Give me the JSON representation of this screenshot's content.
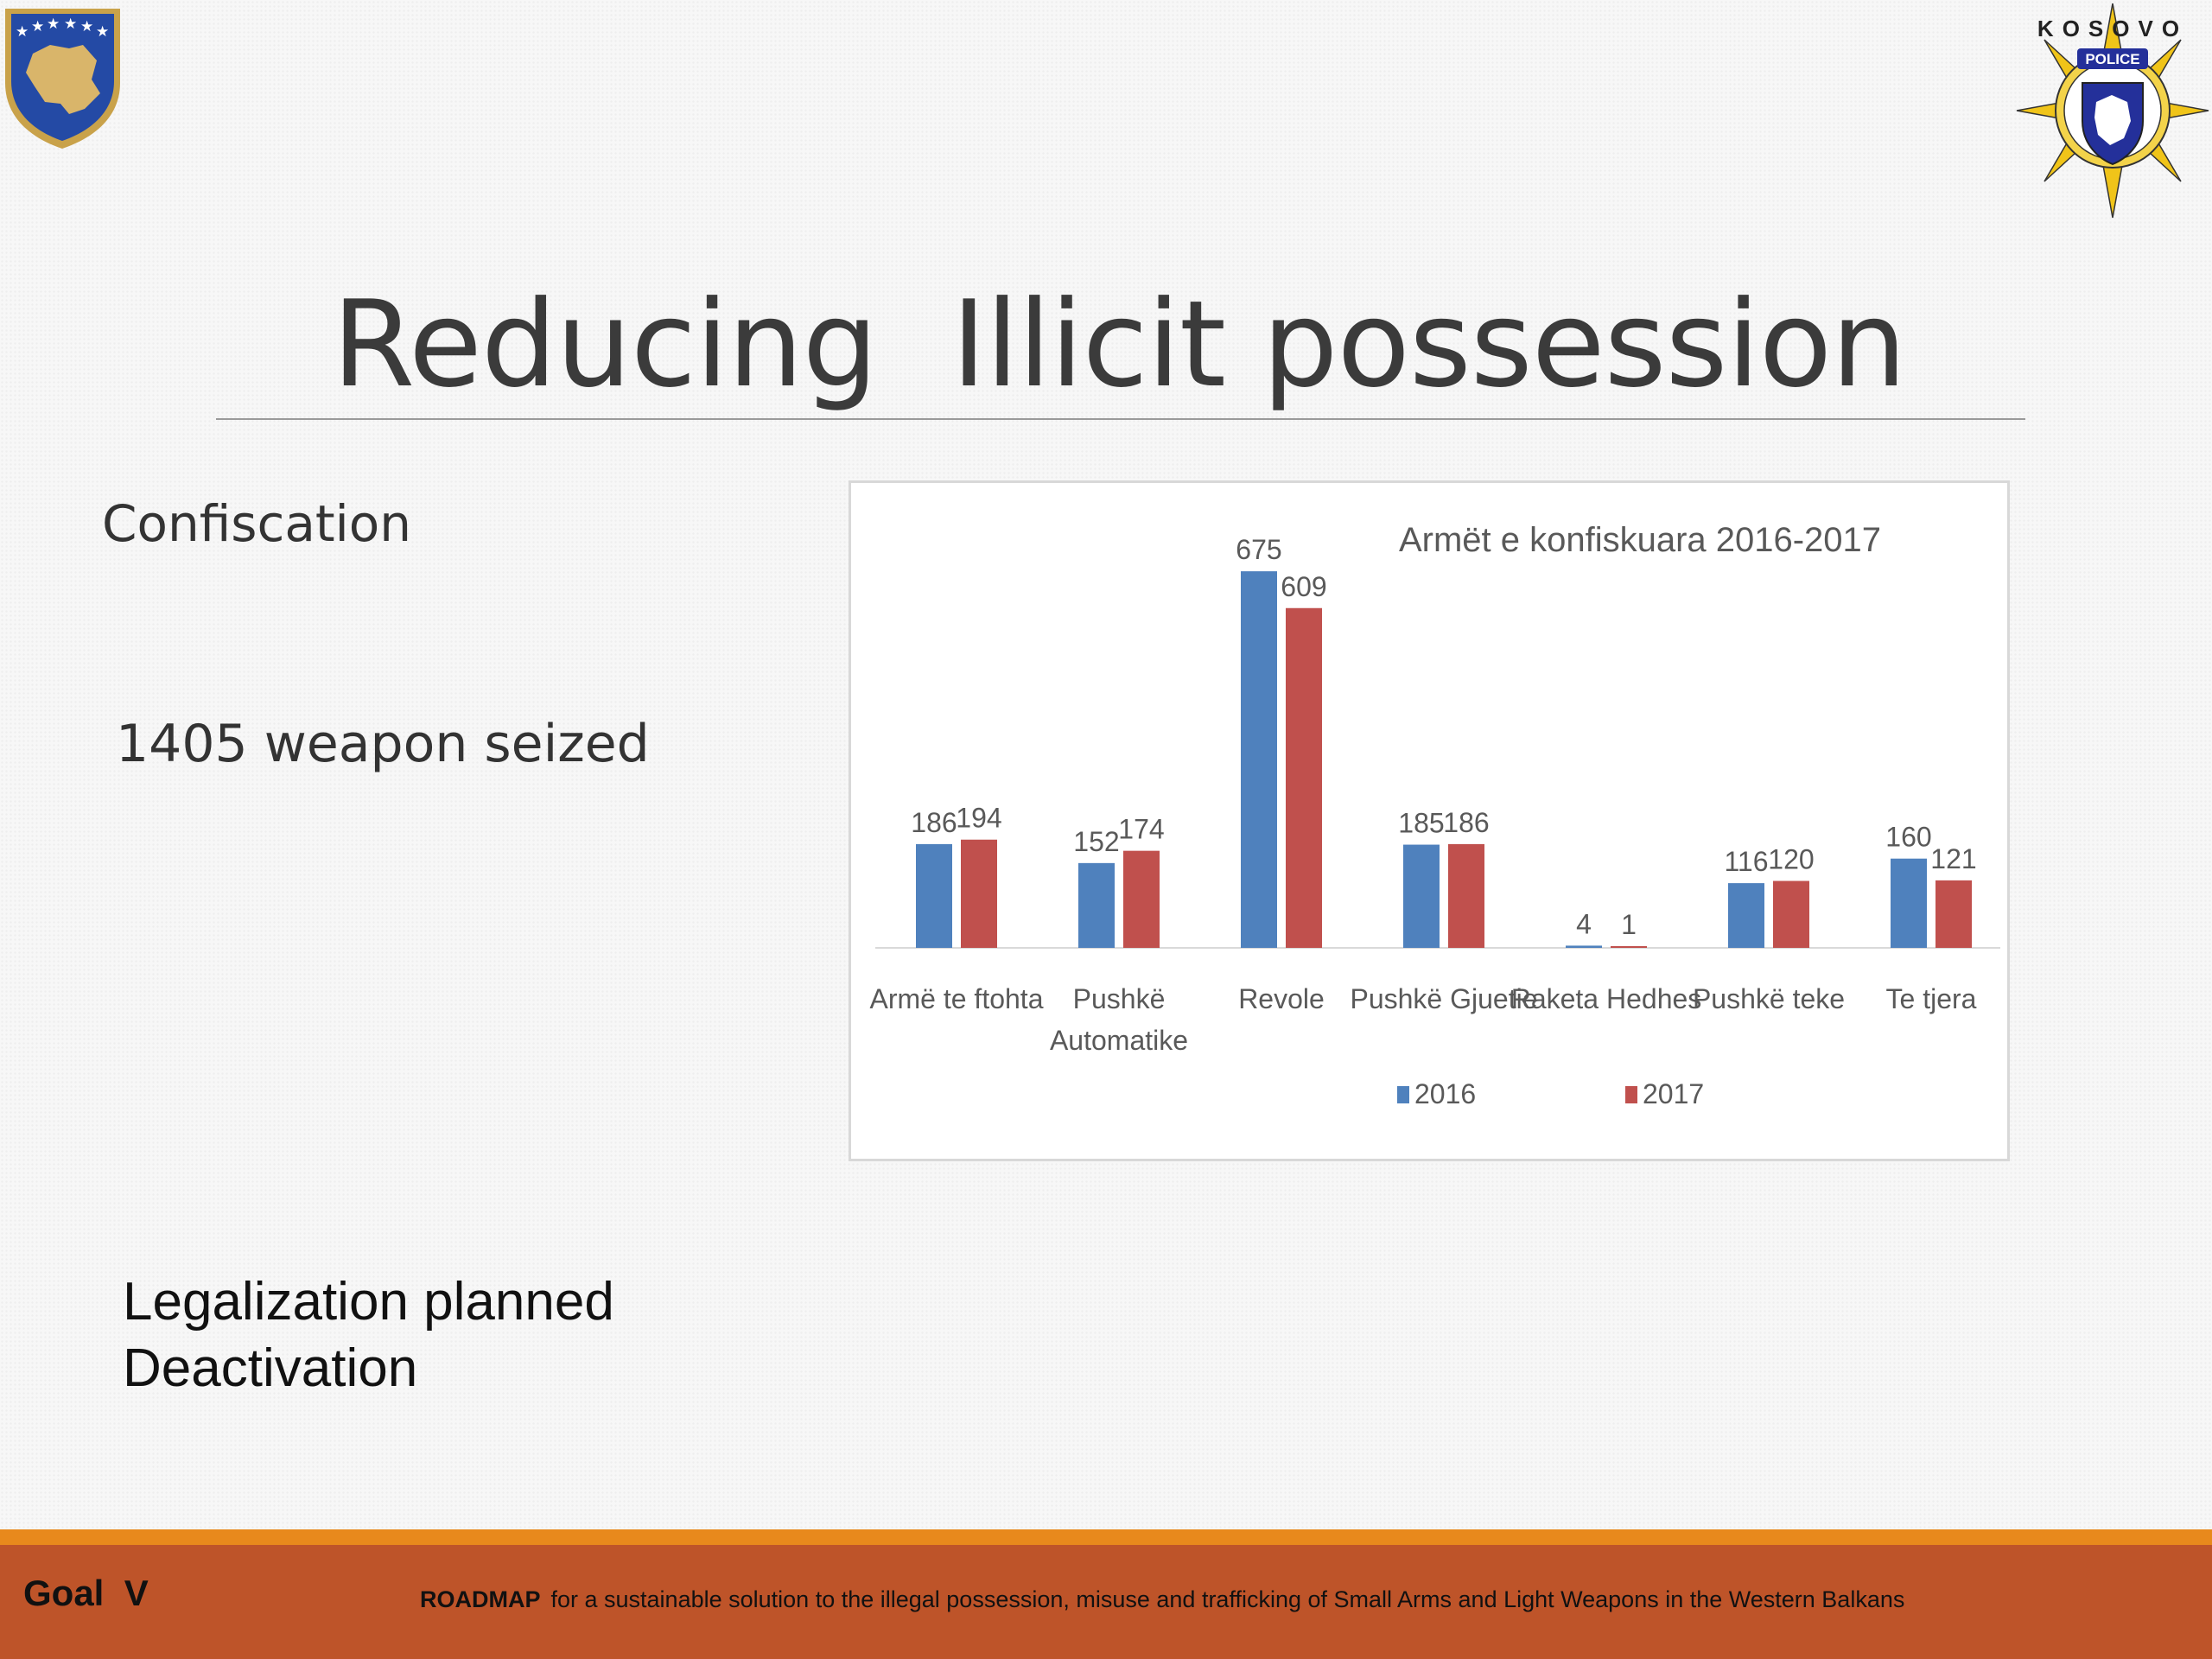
{
  "slide": {
    "title": "Reducing  Illicit possession",
    "confiscation": "Confiscation",
    "seized": "1405 weapon seized",
    "notes": [
      "Legalization planned",
      "Deactivation"
    ],
    "goal": "Goal  V",
    "roadmap_bold": "ROADMAP",
    "roadmap_text": "for a sustainable solution to the illegal possession, misuse and trafficking of Small Arms and Light Weapons in the Western Balkans",
    "right_emblem_text": "KOSOVO",
    "right_emblem_banner": "POLICE"
  },
  "colors": {
    "series_2016": "#4f81bd",
    "series_2017": "#c0504d",
    "footer": "#be5429",
    "footer_stripe": "#e8891c"
  },
  "chart_data": {
    "type": "bar",
    "title": "Armët e konfiskuara 2016-2017",
    "categories": [
      [
        "Armë te ftohta"
      ],
      [
        "Pushkë",
        "Automatike"
      ],
      [
        "Revole"
      ],
      [
        "Pushkë Gjuetie"
      ],
      [
        "Raketa Hedhes"
      ],
      [
        "Pushkë teke"
      ],
      [
        "Te tjera"
      ]
    ],
    "series": [
      {
        "name": "2016",
        "values": [
          186,
          152,
          675,
          185,
          4,
          116,
          160
        ]
      },
      {
        "name": "2017",
        "values": [
          194,
          174,
          609,
          186,
          1,
          120,
          121
        ]
      }
    ],
    "ylim": [
      0,
      700
    ],
    "grid": false,
    "legend": "bottom",
    "data_labels": true
  }
}
